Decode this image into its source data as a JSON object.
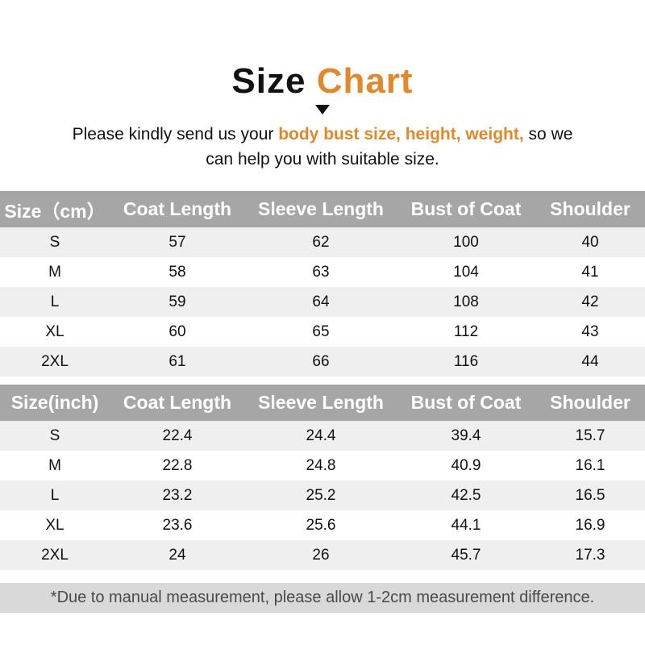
{
  "accent_color": "#e0882a",
  "title": {
    "word1": "Size",
    "word2": "Chart"
  },
  "subtitle": {
    "pre": "Please kindly send us your ",
    "highlight": "body bust size, height, weight,",
    "post": " so we can help you with suitable size."
  },
  "chart_data": [
    {
      "type": "table",
      "title": "Size chart in centimeters",
      "columns": [
        "Size（cm）",
        "Coat Length",
        "Sleeve Length",
        "Bust of Coat",
        "Shoulder"
      ],
      "rows": [
        [
          "S",
          "57",
          "62",
          "100",
          "40"
        ],
        [
          "M",
          "58",
          "63",
          "104",
          "41"
        ],
        [
          "L",
          "59",
          "64",
          "108",
          "42"
        ],
        [
          "XL",
          "60",
          "65",
          "112",
          "43"
        ],
        [
          "2XL",
          "61",
          "66",
          "116",
          "44"
        ]
      ]
    },
    {
      "type": "table",
      "title": "Size chart in inches",
      "columns": [
        "Size(inch)",
        "Coat Length",
        "Sleeve Length",
        "Bust of Coat",
        "Shoulder"
      ],
      "rows": [
        [
          "S",
          "22.4",
          "24.4",
          "39.4",
          "15.7"
        ],
        [
          "M",
          "22.8",
          "24.8",
          "40.9",
          "16.1"
        ],
        [
          "L",
          "23.2",
          "25.2",
          "42.5",
          "16.5"
        ],
        [
          "XL",
          "23.6",
          "25.6",
          "44.1",
          "16.9"
        ],
        [
          "2XL",
          "24",
          "26",
          "45.7",
          "17.3"
        ]
      ]
    }
  ],
  "footer": {
    "note": "*Due to manual measurement, please allow 1-2cm measurement difference."
  }
}
